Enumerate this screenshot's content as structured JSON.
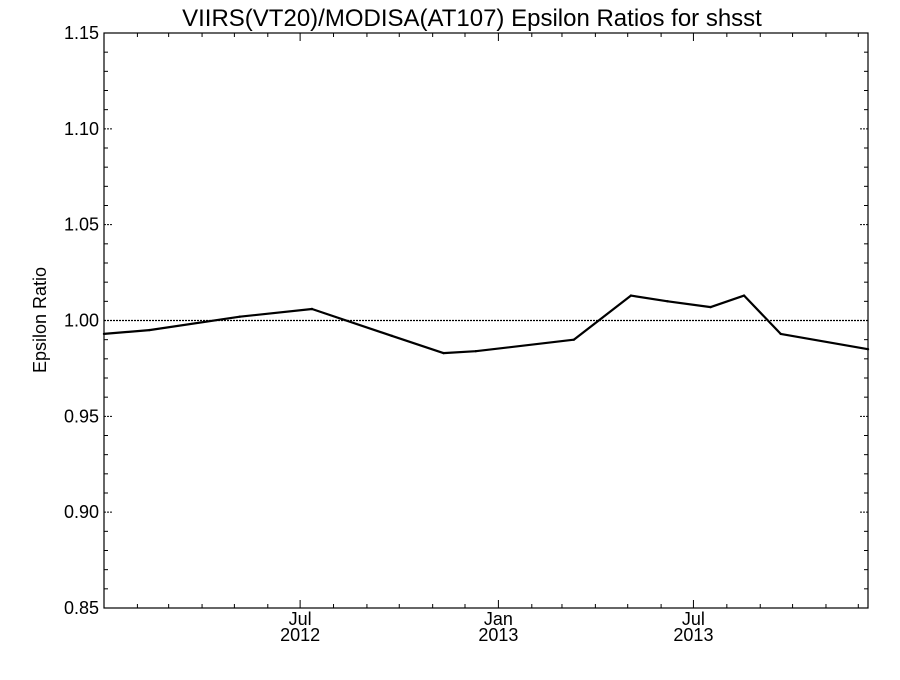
{
  "chart_data": {
    "type": "line",
    "title": "VIIRS(VT20)/MODISA(AT107)  Epsilon Ratios for shsst",
    "xlabel": "",
    "ylabel": "Epsilon Ratio",
    "ylim": [
      0.85,
      1.15
    ],
    "xlim": [
      "2012-01-01",
      "2013-12-10"
    ],
    "yticks": [
      0.85,
      0.9,
      0.95,
      1.0,
      1.05,
      1.1,
      1.15
    ],
    "ytick_labels": [
      "0.85",
      "0.90",
      "0.95",
      "1.00",
      "1.05",
      "1.10",
      "1.15"
    ],
    "xticks": [
      {
        "date": "2012-07-01",
        "line1": "Jul",
        "line2": "2012"
      },
      {
        "date": "2013-01-01",
        "line1": "Jan",
        "line2": "2013"
      },
      {
        "date": "2013-07-01",
        "line1": "Jul",
        "line2": "2013"
      }
    ],
    "x_minor_ticks": [
      "2012-02-01",
      "2012-03-01",
      "2012-04-01",
      "2012-05-01",
      "2012-06-01",
      "2012-08-01",
      "2012-09-01",
      "2012-10-01",
      "2012-11-01",
      "2012-12-01",
      "2013-02-01",
      "2013-03-01",
      "2013-04-01",
      "2013-05-01",
      "2013-06-01",
      "2013-08-01",
      "2013-09-01",
      "2013-10-01",
      "2013-11-01",
      "2013-12-01"
    ],
    "reference_line": 1.0,
    "series": [
      {
        "x": [
          "2012-01-01",
          "2012-02-12",
          "2012-05-06",
          "2012-07-12",
          "2012-09-24",
          "2012-11-11",
          "2012-12-11",
          "2013-03-12",
          "2013-05-04",
          "2013-06-07",
          "2013-07-17",
          "2013-08-17",
          "2013-09-20",
          "2013-12-10"
        ],
        "values": [
          0.993,
          0.995,
          1.002,
          1.006,
          0.992,
          0.983,
          0.984,
          0.99,
          1.013,
          1.01,
          1.007,
          1.013,
          0.993,
          0.985
        ]
      }
    ],
    "grid": false,
    "colors": {
      "line": "#000000",
      "axes": "#000000",
      "reference": "#000000"
    }
  }
}
